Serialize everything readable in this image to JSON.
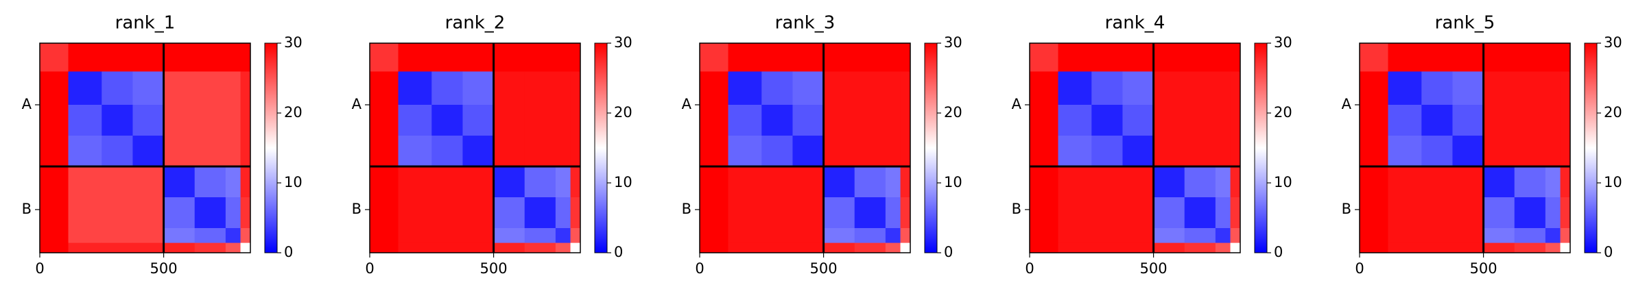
{
  "chart_data": [
    {
      "type": "heatmap",
      "title": "rank_1",
      "bins": [
        0,
        115,
        250,
        375,
        500,
        625,
        750,
        810,
        850
      ],
      "matrix": [
        [
          27,
          30,
          30,
          30,
          30,
          30,
          30,
          30
        ],
        [
          30,
          2,
          5,
          6,
          26,
          26,
          26,
          28
        ],
        [
          30,
          5,
          2,
          5,
          26,
          26,
          26,
          28
        ],
        [
          30,
          6,
          5,
          2,
          26,
          26,
          26,
          28
        ],
        [
          30,
          26,
          26,
          26,
          2,
          6,
          7,
          28
        ],
        [
          30,
          26,
          26,
          26,
          6,
          2,
          6,
          27
        ],
        [
          30,
          26,
          26,
          26,
          7,
          6,
          3,
          25
        ],
        [
          30,
          28,
          28,
          28,
          28,
          27,
          25,
          15
        ]
      ],
      "xlim": [
        0,
        850
      ],
      "ylim": [
        850,
        0
      ],
      "xticks": [
        0,
        500
      ],
      "yticks": [
        {
          "value": 250,
          "label": "A"
        },
        {
          "value": 675,
          "label": "B"
        }
      ],
      "chain_boundaries": [
        500
      ],
      "colormap": "bwr",
      "clim": [
        0,
        30
      ],
      "colorbar_ticks": [
        0,
        10,
        20,
        30
      ]
    },
    {
      "type": "heatmap",
      "title": "rank_2",
      "bins": [
        0,
        115,
        250,
        375,
        500,
        625,
        750,
        810,
        850
      ],
      "matrix": [
        [
          27,
          30,
          30,
          30,
          30,
          30,
          30,
          30
        ],
        [
          30,
          2,
          5,
          6,
          29,
          29,
          29,
          29
        ],
        [
          30,
          5,
          2,
          5,
          29,
          29,
          29,
          29
        ],
        [
          30,
          6,
          5,
          2,
          29,
          29,
          29,
          29
        ],
        [
          30,
          29,
          29,
          29,
          2,
          6,
          7,
          28
        ],
        [
          30,
          29,
          29,
          29,
          6,
          2,
          6,
          27
        ],
        [
          30,
          29,
          29,
          29,
          7,
          6,
          3,
          25
        ],
        [
          30,
          29,
          29,
          29,
          28,
          27,
          25,
          15
        ]
      ],
      "xlim": [
        0,
        850
      ],
      "ylim": [
        850,
        0
      ],
      "xticks": [
        0,
        500
      ],
      "yticks": [
        {
          "value": 250,
          "label": "A"
        },
        {
          "value": 675,
          "label": "B"
        }
      ],
      "chain_boundaries": [
        500
      ],
      "colormap": "bwr",
      "clim": [
        0,
        30
      ],
      "colorbar_ticks": [
        0,
        10,
        20,
        30
      ]
    },
    {
      "type": "heatmap",
      "title": "rank_3",
      "bins": [
        0,
        115,
        250,
        375,
        500,
        625,
        750,
        810,
        850
      ],
      "matrix": [
        [
          27,
          30,
          30,
          30,
          30,
          30,
          30,
          30
        ],
        [
          30,
          2,
          5,
          6,
          29,
          29,
          29,
          29
        ],
        [
          30,
          5,
          2,
          5,
          29,
          29,
          29,
          29
        ],
        [
          30,
          6,
          5,
          2,
          29,
          29,
          29,
          29
        ],
        [
          30,
          29,
          29,
          29,
          2,
          6,
          7,
          28
        ],
        [
          30,
          29,
          29,
          29,
          6,
          2,
          6,
          27
        ],
        [
          30,
          29,
          29,
          29,
          7,
          6,
          3,
          25
        ],
        [
          30,
          29,
          29,
          29,
          28,
          27,
          25,
          15
        ]
      ],
      "xlim": [
        0,
        850
      ],
      "ylim": [
        850,
        0
      ],
      "xticks": [
        0,
        500
      ],
      "yticks": [
        {
          "value": 250,
          "label": "A"
        },
        {
          "value": 675,
          "label": "B"
        }
      ],
      "chain_boundaries": [
        500
      ],
      "colormap": "bwr",
      "clim": [
        0,
        30
      ],
      "colorbar_ticks": [
        0,
        10,
        20,
        30
      ]
    },
    {
      "type": "heatmap",
      "title": "rank_4",
      "bins": [
        0,
        115,
        250,
        375,
        500,
        625,
        750,
        810,
        850
      ],
      "matrix": [
        [
          27,
          30,
          30,
          30,
          30,
          30,
          30,
          30
        ],
        [
          30,
          2,
          5,
          6,
          29,
          29,
          29,
          29
        ],
        [
          30,
          5,
          2,
          5,
          29,
          29,
          29,
          29
        ],
        [
          30,
          6,
          5,
          2,
          29,
          29,
          29,
          29
        ],
        [
          30,
          29,
          29,
          29,
          2,
          6,
          7,
          28
        ],
        [
          30,
          29,
          29,
          29,
          6,
          2,
          6,
          27
        ],
        [
          30,
          29,
          29,
          29,
          7,
          6,
          3,
          25
        ],
        [
          30,
          29,
          29,
          29,
          28,
          27,
          25,
          15
        ]
      ],
      "xlim": [
        0,
        850
      ],
      "ylim": [
        850,
        0
      ],
      "xticks": [
        0,
        500
      ],
      "yticks": [
        {
          "value": 250,
          "label": "A"
        },
        {
          "value": 675,
          "label": "B"
        }
      ],
      "chain_boundaries": [
        500
      ],
      "colormap": "bwr",
      "clim": [
        0,
        30
      ],
      "colorbar_ticks": [
        0,
        10,
        20,
        30
      ]
    },
    {
      "type": "heatmap",
      "title": "rank_5",
      "bins": [
        0,
        115,
        250,
        375,
        500,
        625,
        750,
        810,
        850
      ],
      "matrix": [
        [
          27,
          30,
          30,
          30,
          30,
          30,
          30,
          30
        ],
        [
          30,
          2,
          5,
          6,
          29,
          29,
          29,
          29
        ],
        [
          30,
          5,
          2,
          5,
          29,
          29,
          29,
          29
        ],
        [
          30,
          6,
          5,
          2,
          29,
          29,
          29,
          29
        ],
        [
          30,
          29,
          29,
          29,
          2,
          6,
          7,
          28
        ],
        [
          30,
          29,
          29,
          29,
          6,
          2,
          6,
          27
        ],
        [
          30,
          29,
          29,
          29,
          7,
          6,
          3,
          25
        ],
        [
          30,
          29,
          29,
          29,
          28,
          27,
          25,
          15
        ]
      ],
      "xlim": [
        0,
        850
      ],
      "ylim": [
        850,
        0
      ],
      "xticks": [
        0,
        500
      ],
      "yticks": [
        {
          "value": 250,
          "label": "A"
        },
        {
          "value": 675,
          "label": "B"
        }
      ],
      "chain_boundaries": [
        500
      ],
      "colormap": "bwr",
      "clim": [
        0,
        30
      ],
      "colorbar_ticks": [
        0,
        10,
        20,
        30
      ]
    }
  ]
}
